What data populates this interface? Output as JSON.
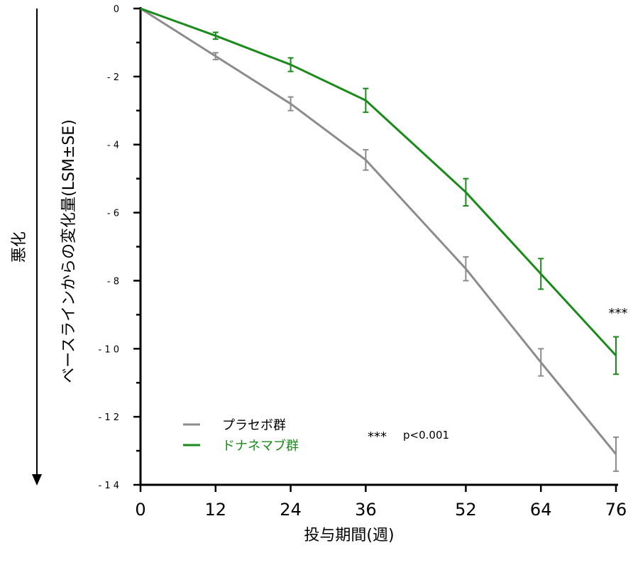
{
  "chart_data": {
    "type": "line",
    "x": [
      0,
      12,
      24,
      36,
      52,
      64,
      76
    ],
    "x_tick_labels": [
      "0",
      "12",
      "24",
      "36",
      "52",
      "64",
      "76"
    ],
    "y_tick_labels": [
      "0",
      "- 2",
      "- 4",
      "- 6",
      "- 8",
      "- 1 0",
      "- 1 2",
      "- 1 4"
    ],
    "ylim": [
      -14,
      0
    ],
    "xlabel": "投与期間(週)",
    "ylabel": "ベースラインからの変化量(LSM±SE)",
    "side_label": "悪化",
    "series": [
      {
        "name": "プラセボ群",
        "color": "#8c8c8c",
        "values": [
          0,
          -1.4,
          -2.8,
          -4.45,
          -7.65,
          -10.4,
          -13.1
        ],
        "se": [
          0,
          0.1,
          0.2,
          0.3,
          0.35,
          0.4,
          0.5
        ]
      },
      {
        "name": "ドナネマブ群",
        "color": "#1a8a1a",
        "values": [
          0,
          -0.8,
          -1.65,
          -2.7,
          -5.4,
          -7.8,
          -10.2
        ],
        "se": [
          0,
          0.1,
          0.2,
          0.35,
          0.4,
          0.45,
          0.55
        ]
      }
    ],
    "annotations": {
      "significance_mark": "***",
      "p_note_stars": "***",
      "p_note_text": "p<0.001"
    },
    "legend_position": "bottom-left"
  }
}
